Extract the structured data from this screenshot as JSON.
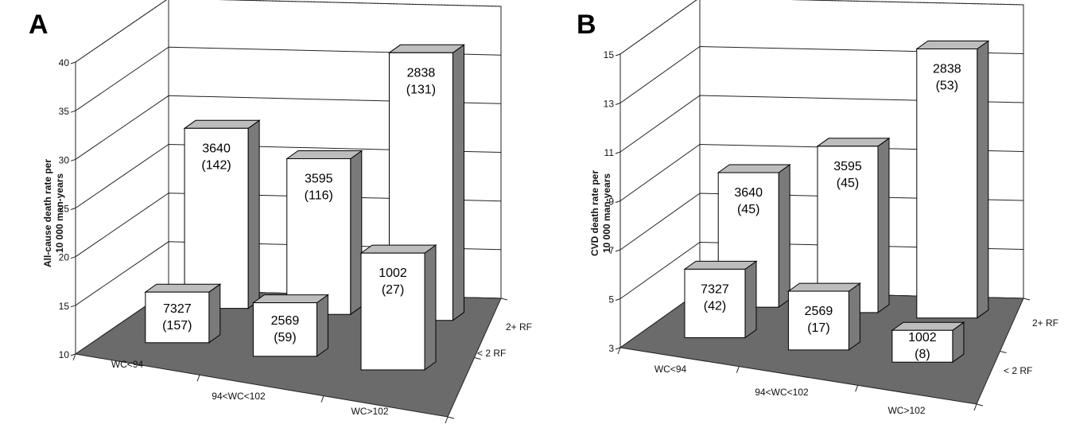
{
  "chart_data": [
    {
      "panel": "A",
      "type": "bar",
      "ylabel": [
        "All-cause death rate per",
        "10 000 man-years"
      ],
      "ylim": [
        10,
        40
      ],
      "yticks": [
        10,
        15,
        20,
        25,
        30,
        35,
        40
      ],
      "categories": [
        "WC<94",
        "94<WC<102",
        "WC>102"
      ],
      "depth_categories": [
        "< 2 RF",
        "2+ RF"
      ],
      "series": [
        {
          "name": "< 2 RF",
          "values": [
            15.2,
            15.5,
            22.0
          ],
          "labels": [
            [
              "7327",
              "(157)"
            ],
            [
              "2569",
              "(59)"
            ],
            [
              "1002",
              "(27)"
            ]
          ]
        },
        {
          "name": "2+ RF",
          "values": [
            28.5,
            26.0,
            37.5
          ],
          "labels": [
            [
              "3640",
              "(142)"
            ],
            [
              "3595",
              "(116)"
            ],
            [
              "2838",
              "(131)"
            ]
          ]
        }
      ]
    },
    {
      "panel": "B",
      "type": "bar",
      "ylabel": [
        "CVD death rate per",
        "10 000 man-years"
      ],
      "ylim": [
        3,
        15
      ],
      "yticks": [
        3,
        5,
        7,
        9,
        11,
        13,
        15
      ],
      "categories": [
        "WC<94",
        "94<WC<102",
        "WC>102"
      ],
      "depth_categories": [
        "< 2 RF",
        "2+ RF"
      ],
      "series": [
        {
          "name": "< 2 RF",
          "values": [
            5.8,
            5.4,
            4.3
          ],
          "labels": [
            [
              "7327",
              "(42)"
            ],
            [
              "2569",
              "(17)"
            ],
            [
              "1002",
              "(8)"
            ]
          ]
        },
        {
          "name": "2+ RF",
          "values": [
            8.5,
            9.8,
            14.0
          ],
          "labels": [
            [
              "3640",
              "(45)"
            ],
            [
              "3595",
              "(45)"
            ],
            [
              "2838",
              "(53)"
            ]
          ]
        }
      ]
    }
  ],
  "colors": {
    "floor": "#6b6b6b",
    "bar_front": "#ffffff",
    "bar_top": "#bdbdbd",
    "bar_side": "#7a7a7a",
    "grid": "#222222"
  }
}
